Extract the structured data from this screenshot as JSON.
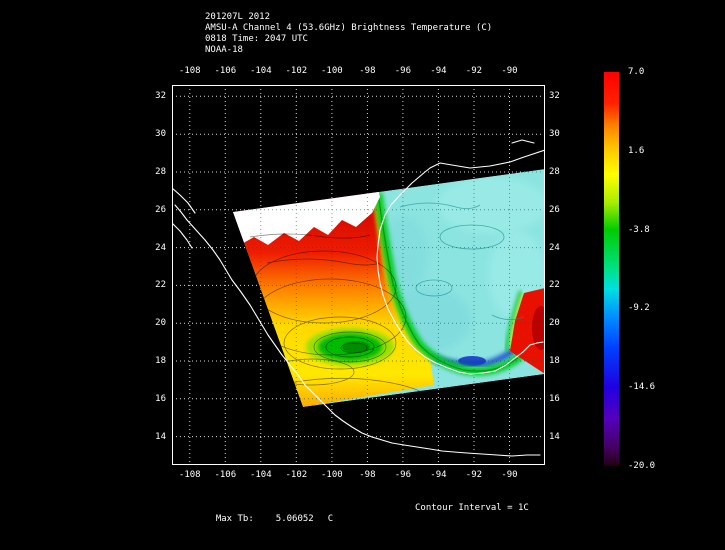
{
  "header": {
    "line1": "201207L 2012",
    "line2": "AMSU-A Channel 4 (53.6GHz) Brightness Temperature (C)",
    "line3": "0818 Time: 2047 UTC",
    "line4": "NOAA-18"
  },
  "footer": {
    "max_label": "Max Tb:",
    "max_value": "5.06052",
    "max_unit": "C",
    "contour_text": "Contour Interval = 1C"
  },
  "chart_data": {
    "type": "heatmap",
    "title": "AMSU-A Channel 4 (53.6GHz) Brightness Temperature (C)",
    "date_line": "201207L 2012",
    "time_line": "0818 Time: 2047 UTC",
    "satellite": "NOAA-18",
    "xlabel": "",
    "ylabel": "",
    "x_ticks": [
      -108,
      -106,
      -104,
      -102,
      -100,
      -98,
      -96,
      -94,
      -92,
      -90
    ],
    "y_ticks": [
      32,
      30,
      28,
      26,
      24,
      22,
      20,
      18,
      16,
      14
    ],
    "x_range": [
      -109.0,
      -88.0
    ],
    "y_range": [
      12.5,
      32.6
    ],
    "grid": "dotted",
    "units": "C",
    "max_tb_c": 5.06052,
    "contour_interval_c": 1,
    "colorbar": {
      "position": "right",
      "min": -20.0,
      "max": 7.0,
      "ticks": [
        7.0,
        1.6,
        -3.8,
        -9.2,
        -14.6,
        -20.0
      ],
      "tick_labels": [
        "7.0",
        "1.6",
        "-3.8",
        "-9.2",
        "-14.6",
        "-20.0"
      ],
      "stops": [
        {
          "pos": 0.0,
          "color": "#ff0000"
        },
        {
          "pos": 0.08,
          "color": "#ff2200"
        },
        {
          "pos": 0.14,
          "color": "#ff8800"
        },
        {
          "pos": 0.2,
          "color": "#ffcc00"
        },
        {
          "pos": 0.26,
          "color": "#ffff00"
        },
        {
          "pos": 0.33,
          "color": "#aaee00"
        },
        {
          "pos": 0.4,
          "color": "#00cc00"
        },
        {
          "pos": 0.5,
          "color": "#00e088"
        },
        {
          "pos": 0.55,
          "color": "#00e0e0"
        },
        {
          "pos": 0.62,
          "color": "#0090ff"
        },
        {
          "pos": 0.7,
          "color": "#0040ff"
        },
        {
          "pos": 0.8,
          "color": "#2000e0"
        },
        {
          "pos": 0.88,
          "color": "#5500bb"
        },
        {
          "pos": 0.95,
          "color": "#440066"
        },
        {
          "pos": 1.0,
          "color": "#220011"
        }
      ]
    },
    "features": [
      {
        "area": "Mexico interior (land, warm swath)",
        "approx_range_c": [
          0,
          5
        ]
      },
      {
        "area": "Gulf of Mexico (cool water)",
        "approx_range_c": [
          -8,
          -5
        ]
      },
      {
        "area": "coastal transition band (green)",
        "approx_range_c": [
          -4,
          -1
        ]
      },
      {
        "area": "white off-scale / saturated region (north-west swath)",
        "approx_range_c": null
      },
      {
        "area": "hot spot at eastern swath edge near 20N",
        "approx_range_c": [
          3,
          6
        ]
      }
    ]
  },
  "colors": {
    "background": "#000000",
    "text": "#ffffff",
    "grid": "#ffffff",
    "coastline": "#ffffff",
    "frame": "#ffffff"
  }
}
